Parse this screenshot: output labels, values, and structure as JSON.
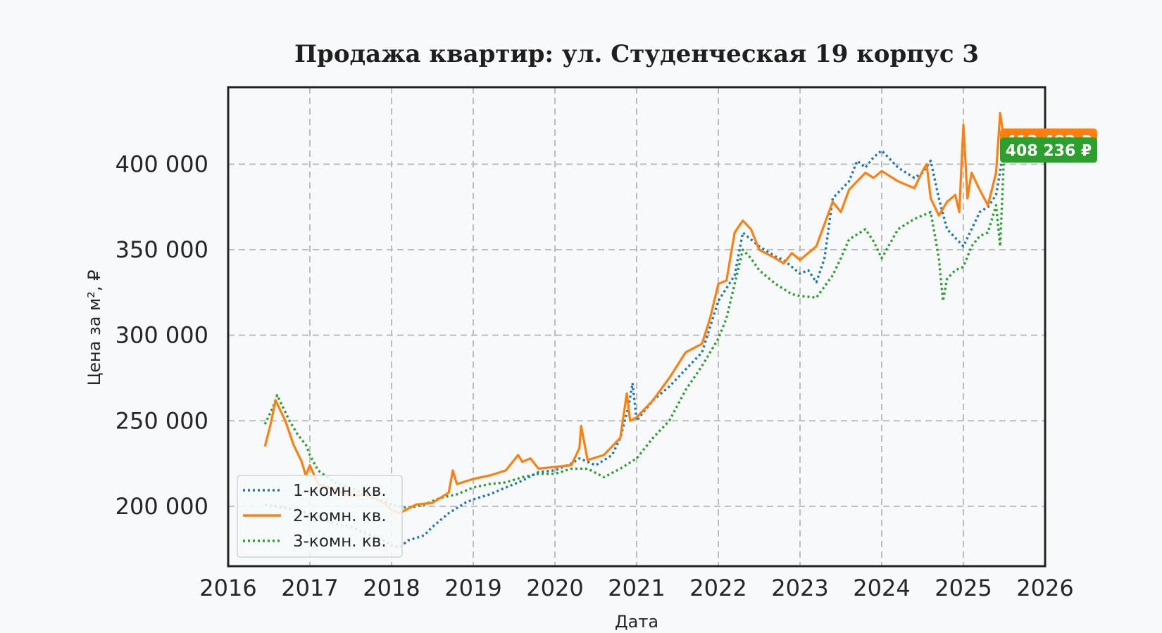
{
  "chart_data": {
    "type": "line",
    "title": "Продажа квартир: ул. Студенческая 19 корпус 3",
    "xlabel": "Дата",
    "ylabel": "Цена за м², ₽",
    "xlim": [
      2016.0,
      2026.0
    ],
    "ylim": [
      165000,
      445000
    ],
    "x_ticks": [
      2016,
      2017,
      2018,
      2019,
      2020,
      2021,
      2022,
      2023,
      2024,
      2025,
      2026
    ],
    "x_tick_labels": [
      "2016",
      "2017",
      "2018",
      "2019",
      "2020",
      "2021",
      "2022",
      "2023",
      "2024",
      "2025",
      "2026"
    ],
    "y_ticks": [
      200000,
      250000,
      300000,
      350000,
      400000
    ],
    "y_tick_labels": [
      "200 000",
      "250 000",
      "300 000",
      "350 000",
      "400 000"
    ],
    "grid": true,
    "legend_position": "lower-left",
    "series": [
      {
        "name": "1-комн. кв.",
        "color": "#1f77b4",
        "style": "dotted",
        "x": [
          2016.45,
          2016.7,
          2016.9,
          2017.1,
          2017.3,
          2017.5,
          2017.7,
          2017.9,
          2018.0,
          2018.1,
          2018.2,
          2018.4,
          2018.5,
          2018.7,
          2018.9,
          2019.0,
          2019.2,
          2019.4,
          2019.6,
          2019.8,
          2020.0,
          2020.2,
          2020.3,
          2020.5,
          2020.7,
          2020.8,
          2020.9,
          2020.95,
          2021.0,
          2021.2,
          2021.4,
          2021.6,
          2021.8,
          2021.9,
          2022.0,
          2022.2,
          2022.3,
          2022.5,
          2022.7,
          2022.8,
          2022.9,
          2023.0,
          2023.1,
          2023.2,
          2023.3,
          2023.4,
          2023.5,
          2023.6,
          2023.7,
          2023.8,
          2023.9,
          2024.0,
          2024.2,
          2024.4,
          2024.5,
          2024.6,
          2024.7,
          2024.8,
          2025.0,
          2025.1,
          2025.2,
          2025.3,
          2025.4,
          2025.5
        ],
        "y": [
          201000,
          199000,
          197000,
          194000,
          190000,
          188000,
          184000,
          180000,
          177000,
          176000,
          180000,
          183000,
          188000,
          196000,
          202000,
          204000,
          207000,
          211000,
          215000,
          220000,
          221000,
          225000,
          228000,
          224000,
          230000,
          240000,
          258000,
          272000,
          250000,
          262000,
          270000,
          280000,
          290000,
          305000,
          320000,
          335000,
          360000,
          352000,
          346000,
          344000,
          340000,
          336000,
          338000,
          331000,
          345000,
          380000,
          385000,
          390000,
          402000,
          398000,
          404000,
          408000,
          398000,
          392000,
          395000,
          402000,
          380000,
          362000,
          352000,
          362000,
          372000,
          375000,
          382000,
          410000
        ]
      },
      {
        "name": "2-комн. кв.",
        "color": "#ff7f0e",
        "style": "solid",
        "x": [
          2016.45,
          2016.52,
          2016.58,
          2016.7,
          2016.8,
          2016.9,
          2016.95,
          2017.0,
          2017.1,
          2017.3,
          2017.5,
          2017.7,
          2017.9,
          2018.0,
          2018.1,
          2018.3,
          2018.5,
          2018.7,
          2018.75,
          2018.8,
          2019.0,
          2019.2,
          2019.4,
          2019.55,
          2019.6,
          2019.7,
          2019.8,
          2020.0,
          2020.2,
          2020.3,
          2020.32,
          2020.4,
          2020.6,
          2020.8,
          2020.88,
          2020.92,
          2021.0,
          2021.2,
          2021.4,
          2021.6,
          2021.8,
          2021.9,
          2022.0,
          2022.1,
          2022.2,
          2022.3,
          2022.4,
          2022.5,
          2022.7,
          2022.8,
          2022.9,
          2023.0,
          2023.1,
          2023.2,
          2023.3,
          2023.4,
          2023.5,
          2023.6,
          2023.7,
          2023.8,
          2023.9,
          2024.0,
          2024.2,
          2024.4,
          2024.5,
          2024.55,
          2024.6,
          2024.7,
          2024.8,
          2024.9,
          2024.95,
          2025.0,
          2025.05,
          2025.1,
          2025.2,
          2025.3,
          2025.4,
          2025.45,
          2025.5
        ],
        "y": [
          235000,
          248000,
          262000,
          250000,
          236000,
          226000,
          218000,
          224000,
          213000,
          210000,
          206000,
          207000,
          202000,
          198000,
          196000,
          201000,
          202000,
          208000,
          221000,
          213000,
          216000,
          218000,
          221000,
          230000,
          226000,
          228000,
          222000,
          223000,
          224000,
          234000,
          247000,
          227000,
          230000,
          240000,
          266000,
          250000,
          252000,
          262000,
          275000,
          290000,
          295000,
          310000,
          330000,
          332000,
          360000,
          367000,
          362000,
          350000,
          345000,
          342000,
          348000,
          344000,
          348000,
          352000,
          365000,
          378000,
          372000,
          385000,
          390000,
          395000,
          392000,
          396000,
          390000,
          386000,
          396000,
          400000,
          380000,
          370000,
          378000,
          382000,
          372000,
          423000,
          380000,
          395000,
          385000,
          376000,
          395000,
          430000,
          413482
        ]
      },
      {
        "name": "3-комн. кв.",
        "color": "#2ca02c",
        "style": "dotted",
        "x": [
          2016.45,
          2016.55,
          2016.6,
          2016.75,
          2016.85,
          2016.95,
          2017.0,
          2017.1,
          2017.3,
          2017.5,
          2017.7,
          2017.9,
          2018.0,
          2018.2,
          2018.4,
          2018.6,
          2018.8,
          2019.0,
          2019.2,
          2019.4,
          2019.6,
          2019.8,
          2020.0,
          2020.2,
          2020.4,
          2020.6,
          2020.8,
          2021.0,
          2021.2,
          2021.4,
          2021.6,
          2021.8,
          2022.0,
          2022.1,
          2022.2,
          2022.3,
          2022.4,
          2022.5,
          2022.7,
          2022.9,
          2023.0,
          2023.2,
          2023.4,
          2023.5,
          2023.6,
          2023.8,
          2023.9,
          2024.0,
          2024.2,
          2024.4,
          2024.6,
          2024.7,
          2024.75,
          2024.8,
          2024.9,
          2025.0,
          2025.1,
          2025.2,
          2025.3,
          2025.4,
          2025.45,
          2025.5
        ],
        "y": [
          248000,
          258000,
          265000,
          250000,
          242000,
          236000,
          230000,
          221000,
          214000,
          211000,
          206000,
          203000,
          201000,
          199000,
          201000,
          205000,
          207000,
          211000,
          213000,
          214000,
          217000,
          219000,
          219000,
          222000,
          222000,
          217000,
          222000,
          228000,
          240000,
          250000,
          268000,
          282000,
          298000,
          310000,
          330000,
          350000,
          345000,
          338000,
          330000,
          324000,
          323000,
          322000,
          335000,
          345000,
          356000,
          362000,
          355000,
          345000,
          362000,
          368000,
          372000,
          345000,
          320000,
          333000,
          338000,
          340000,
          352000,
          358000,
          360000,
          376000,
          352000,
          408236
        ]
      }
    ],
    "end_badges": [
      {
        "series": "2-комн. кв.",
        "label": "413 482 ₽",
        "color": "#ff7f0e"
      },
      {
        "series": "3-комн. кв.",
        "label": "408 236 ₽",
        "color": "#2ca02c"
      }
    ]
  }
}
